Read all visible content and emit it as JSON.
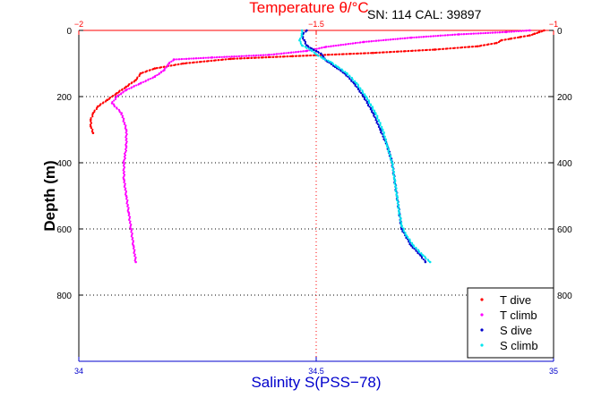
{
  "chart_data": {
    "type": "scatter",
    "title_top": "Temperature θ/°C",
    "annotation": "SN: 114  CAL: 39897",
    "xlabel_bottom": "Salinity S(PSS−78)",
    "ylabel": "Depth (m)",
    "x_bottom": {
      "min": 34,
      "max": 35,
      "ticks": [
        "34",
        "34.5",
        "35"
      ],
      "values": [
        34,
        34.5,
        35
      ]
    },
    "x_top": {
      "min": -2,
      "max": -1,
      "ticks": [
        "−2",
        "−1.5",
        "−1"
      ],
      "values": [
        -2,
        -1.5,
        -1
      ]
    },
    "y": {
      "min": 0,
      "max": 1000,
      "reversed": true,
      "ticks": [
        "0",
        "200",
        "400",
        "600",
        "800"
      ],
      "values": [
        0,
        200,
        400,
        600,
        800
      ]
    },
    "grid": true,
    "legend_position": "bottom-right",
    "colors": {
      "t_dive": "#ff0000",
      "t_climb": "#ff00ff",
      "s_dive": "#0000cc",
      "s_climb": "#00e5ee",
      "top_axis": "#ff0000",
      "bottom_axis": "#0000cc"
    },
    "series": [
      {
        "name": "T dive",
        "axis": "top",
        "color": "#ff0000",
        "points": [
          [
            -1.02,
            0
          ],
          [
            -1.03,
            5
          ],
          [
            -1.04,
            10
          ],
          [
            -1.05,
            15
          ],
          [
            -1.07,
            20
          ],
          [
            -1.09,
            25
          ],
          [
            -1.11,
            30
          ],
          [
            -1.12,
            38
          ],
          [
            -1.16,
            48
          ],
          [
            -1.25,
            58
          ],
          [
            -1.38,
            68
          ],
          [
            -1.55,
            78
          ],
          [
            -1.68,
            86
          ],
          [
            -1.78,
            100
          ],
          [
            -1.84,
            115
          ],
          [
            -1.87,
            130
          ],
          [
            -1.88,
            150
          ],
          [
            -1.9,
            170
          ],
          [
            -1.92,
            190
          ],
          [
            -1.94,
            210
          ],
          [
            -1.96,
            230
          ],
          [
            -1.97,
            250
          ],
          [
            -1.975,
            270
          ],
          [
            -1.975,
            290
          ],
          [
            -1.97,
            310
          ]
        ]
      },
      {
        "name": "T climb",
        "axis": "top",
        "color": "#ff00ff",
        "points": [
          [
            -1.88,
            700
          ],
          [
            -1.885,
            650
          ],
          [
            -1.89,
            600
          ],
          [
            -1.895,
            550
          ],
          [
            -1.9,
            500
          ],
          [
            -1.905,
            450
          ],
          [
            -1.905,
            400
          ],
          [
            -1.9,
            350
          ],
          [
            -1.9,
            300
          ],
          [
            -1.91,
            250
          ],
          [
            -1.93,
            220
          ],
          [
            -1.92,
            200
          ],
          [
            -1.9,
            180
          ],
          [
            -1.87,
            160
          ],
          [
            -1.84,
            140
          ],
          [
            -1.82,
            120
          ],
          [
            -1.81,
            100
          ],
          [
            -1.8,
            88
          ],
          [
            -1.72,
            82
          ],
          [
            -1.6,
            74
          ],
          [
            -1.52,
            62
          ],
          [
            -1.48,
            50
          ],
          [
            -1.4,
            35
          ],
          [
            -1.3,
            22
          ],
          [
            -1.2,
            12
          ],
          [
            -1.1,
            5
          ],
          [
            -1.05,
            0
          ]
        ]
      },
      {
        "name": "S dive",
        "axis": "bottom",
        "color": "#0000cc",
        "points": [
          [
            34.48,
            0
          ],
          [
            34.47,
            15
          ],
          [
            34.475,
            30
          ],
          [
            34.48,
            45
          ],
          [
            34.49,
            55
          ],
          [
            34.5,
            62
          ],
          [
            34.51,
            70
          ],
          [
            34.515,
            80
          ],
          [
            34.52,
            90
          ],
          [
            34.54,
            110
          ],
          [
            34.56,
            130
          ],
          [
            34.58,
            160
          ],
          [
            34.6,
            200
          ],
          [
            34.62,
            250
          ],
          [
            34.635,
            300
          ],
          [
            34.65,
            350
          ],
          [
            34.66,
            400
          ],
          [
            34.665,
            450
          ],
          [
            34.67,
            500
          ],
          [
            34.675,
            550
          ],
          [
            34.68,
            600
          ],
          [
            34.7,
            650
          ],
          [
            34.72,
            680
          ],
          [
            34.73,
            700
          ]
        ]
      },
      {
        "name": "S climb",
        "axis": "bottom",
        "color": "#00e5ee",
        "points": [
          [
            34.74,
            700
          ],
          [
            34.725,
            680
          ],
          [
            34.705,
            650
          ],
          [
            34.69,
            620
          ],
          [
            34.68,
            590
          ],
          [
            34.675,
            550
          ],
          [
            34.67,
            500
          ],
          [
            34.665,
            450
          ],
          [
            34.66,
            400
          ],
          [
            34.65,
            350
          ],
          [
            34.64,
            300
          ],
          [
            34.625,
            250
          ],
          [
            34.605,
            200
          ],
          [
            34.585,
            160
          ],
          [
            34.565,
            130
          ],
          [
            34.545,
            110
          ],
          [
            34.53,
            95
          ],
          [
            34.515,
            85
          ],
          [
            34.5,
            72
          ],
          [
            34.49,
            60
          ],
          [
            34.47,
            45
          ],
          [
            34.465,
            30
          ],
          [
            34.47,
            15
          ],
          [
            34.47,
            0
          ]
        ]
      }
    ]
  }
}
